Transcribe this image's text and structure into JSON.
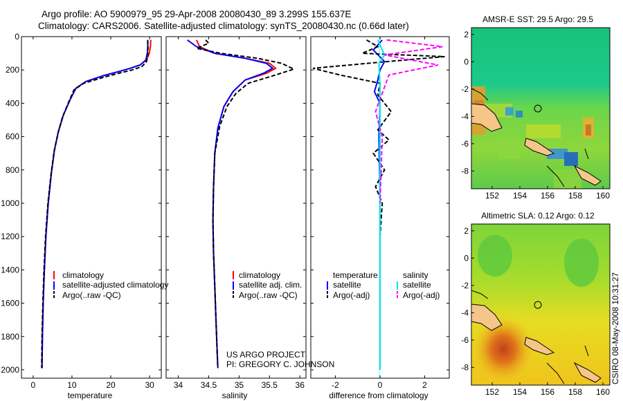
{
  "header": {
    "title_line1": "Argo profile: AO 5900979_95 29-Apr-2008 20080430_89 3.299S 155.637E",
    "title_line2": "Climatology: CARS2006. Satellite-adjusted climatology: synTS_20080430.nc (0.66d later)"
  },
  "credit": {
    "line1": "US ARGO PROJECT",
    "line2": "PI: GREGORY C. JOHNSON",
    "side_label": "CSIRO 08-May-2008 10:31:27"
  },
  "chart_data": [
    {
      "type": "line",
      "xlabel": "temperature",
      "ylabel": "",
      "xlim": [
        -3,
        33
      ],
      "ylim": [
        2050,
        0
      ],
      "xticks": [
        0,
        10,
        20,
        30
      ],
      "yticks": [
        0,
        200,
        400,
        600,
        800,
        1000,
        1200,
        1400,
        1600,
        1800,
        2000
      ],
      "legend": {
        "position": "lower-center",
        "entries": [
          "climatology",
          "satellite-adjusted climatology",
          "Argo(..raw -QC)"
        ]
      },
      "series": [
        {
          "name": "climatology",
          "color": "#ff0000",
          "dash": "solid",
          "x": [
            30.3,
            30.2,
            29.9,
            29.2,
            27.5,
            25,
            22,
            18,
            13.5,
            11,
            9.5,
            7.8,
            6.5,
            5.5,
            4.7,
            3.9,
            3.3,
            2.9,
            2.6,
            2.4,
            2.3
          ],
          "y": [
            20,
            60,
            100,
            140,
            170,
            190,
            210,
            235,
            270,
            310,
            380,
            470,
            570,
            680,
            820,
            1000,
            1200,
            1400,
            1600,
            1800,
            1990
          ]
        },
        {
          "name": "satellite-adjusted climatology",
          "color": "#0000ff",
          "dash": "solid",
          "x": [
            29.5,
            29.5,
            29.4,
            29,
            27.6,
            25,
            22,
            18,
            13.5,
            11,
            9.5,
            7.8,
            6.5,
            5.5,
            4.7,
            3.9,
            3.3,
            2.9,
            2.6,
            2.4,
            2.3
          ],
          "y": [
            20,
            60,
            100,
            140,
            170,
            190,
            210,
            235,
            270,
            310,
            380,
            470,
            570,
            680,
            820,
            1000,
            1200,
            1400,
            1600,
            1800,
            1990
          ]
        },
        {
          "name": "Argo(..raw -QC)",
          "color": "#000000",
          "dash": "dashed",
          "x": [
            29.5,
            29.6,
            29.5,
            29.2,
            28,
            25.5,
            22,
            18,
            13,
            10.5,
            9.2,
            7.6,
            6.4,
            5.4,
            4.6,
            3.8,
            3.2,
            2.8,
            2.5,
            2.3,
            2.2
          ],
          "y": [
            20,
            60,
            110,
            150,
            180,
            200,
            220,
            245,
            280,
            320,
            390,
            480,
            580,
            690,
            830,
            1000,
            1200,
            1400,
            1600,
            1800,
            1990
          ]
        }
      ]
    },
    {
      "type": "line",
      "xlabel": "salinity",
      "xlim": [
        33.8,
        36.1
      ],
      "ylim": [
        2050,
        0
      ],
      "xticks": [
        34,
        34.5,
        35,
        35.5,
        36
      ],
      "legend": {
        "position": "lower-center",
        "entries": [
          "climatology",
          "satellite adj. clim.",
          "Argo(..raw -QC)"
        ]
      },
      "series": [
        {
          "name": "climatology",
          "color": "#ff0000",
          "dash": "solid",
          "x": [
            34.3,
            34.35,
            34.6,
            35.1,
            35.5,
            35.6,
            35.45,
            35.1,
            34.9,
            34.75,
            34.65,
            34.6,
            34.58,
            34.57,
            34.58,
            34.6,
            34.62,
            34.64,
            34.65
          ],
          "y": [
            20,
            60,
            100,
            130,
            160,
            190,
            220,
            260,
            330,
            420,
            550,
            700,
            900,
            1100,
            1300,
            1500,
            1700,
            1900,
            1990
          ]
        },
        {
          "name": "satellite adj. clim.",
          "color": "#0000ff",
          "dash": "solid",
          "x": [
            34.15,
            34.3,
            34.6,
            35.1,
            35.45,
            35.55,
            35.4,
            35.1,
            34.9,
            34.75,
            34.65,
            34.6,
            34.58,
            34.57,
            34.58,
            34.6,
            34.62,
            34.64,
            34.65
          ],
          "y": [
            20,
            60,
            100,
            130,
            160,
            190,
            220,
            260,
            330,
            420,
            550,
            700,
            900,
            1100,
            1300,
            1500,
            1700,
            1900,
            1990
          ]
        },
        {
          "name": "Argo(..raw -QC)",
          "color": "#000000",
          "dash": "dashed",
          "x": [
            34.45,
            34.5,
            34.3,
            34.7,
            35.3,
            35.7,
            35.9,
            35.6,
            35.15,
            34.95,
            34.8,
            34.68,
            34.6,
            34.58,
            34.57,
            34.58,
            34.6,
            34.62,
            34.64,
            34.65
          ],
          "y": [
            20,
            40,
            70,
            100,
            130,
            160,
            195,
            230,
            280,
            340,
            420,
            540,
            700,
            900,
            1100,
            1300,
            1500,
            1700,
            1900,
            1990
          ]
        }
      ]
    },
    {
      "type": "line",
      "xlabel": "difference from climatology",
      "xlim": [
        -3.1,
        3.1
      ],
      "ylim": [
        2050,
        0
      ],
      "xticks": [
        -2,
        0,
        2
      ],
      "legend": {
        "position": "lower-center",
        "groups": [
          "temperature",
          "salinity"
        ],
        "entries": [
          "satellite",
          "Argo(-adj)",
          "satellite",
          "Argo(-adj)"
        ]
      },
      "series": [
        {
          "name": "satellite",
          "group": "temperature",
          "color": "#0000ff",
          "dash": "solid",
          "x": [
            0.1,
            -0.3,
            0.2,
            0,
            -0.1,
            -0.25,
            0,
            -0.05,
            0,
            0,
            0
          ],
          "y": [
            20,
            80,
            150,
            200,
            260,
            330,
            400,
            600,
            1000,
            1500,
            2000
          ]
        },
        {
          "name": "Argo(-adj)",
          "group": "temperature",
          "color": "#000000",
          "dash": "dashed",
          "x": [
            -0.6,
            -0.1,
            -0.8,
            2.9,
            0.3,
            -3.0,
            -1.8,
            0,
            -0.1,
            0.5,
            -0.1,
            0.4,
            -0.3,
            0.2,
            -0.2,
            0.1,
            0,
            0
          ],
          "y": [
            20,
            60,
            100,
            120,
            150,
            190,
            230,
            280,
            350,
            450,
            560,
            620,
            700,
            800,
            900,
            1000,
            1200,
            1500
          ]
        },
        {
          "name": "satellite",
          "group": "salinity",
          "color": "#00e5ee",
          "dash": "solid",
          "x": [
            -0.1,
            0.2,
            -0.05,
            0,
            0,
            0,
            0
          ],
          "y": [
            20,
            110,
            160,
            300,
            800,
            1500,
            2000
          ]
        },
        {
          "name": "Argo(-adj)",
          "group": "salinity",
          "color": "#ff00ff",
          "dash": "dashed",
          "x": [
            0.3,
            2.8,
            0.2,
            2.6,
            0.4,
            -0.2,
            0.1,
            0
          ],
          "y": [
            20,
            60,
            110,
            170,
            230,
            450,
            600,
            1000
          ]
        }
      ]
    },
    {
      "type": "heatmap",
      "title": "AMSR-E SST: 29.5 Argo: 29.5",
      "xlim": [
        150.5,
        160.5
      ],
      "ylim": [
        -9.3,
        2.5
      ],
      "xticks": [
        152,
        154,
        156,
        158,
        160
      ],
      "yticks": [
        -8,
        -6,
        -4,
        -2,
        0,
        2
      ],
      "marker": {
        "lon": 155.637,
        "lat": -3.299
      }
    },
    {
      "type": "heatmap",
      "title": "Altimetric SLA: 0.12 Argo: 0.12",
      "xlim": [
        150.5,
        160.5
      ],
      "ylim": [
        -9.3,
        2.5
      ],
      "xticks": [
        152,
        154,
        156,
        158,
        160
      ],
      "yticks": [
        -8,
        -6,
        -4,
        -2,
        0,
        2
      ],
      "marker": {
        "lon": 155.637,
        "lat": -3.299
      }
    }
  ]
}
